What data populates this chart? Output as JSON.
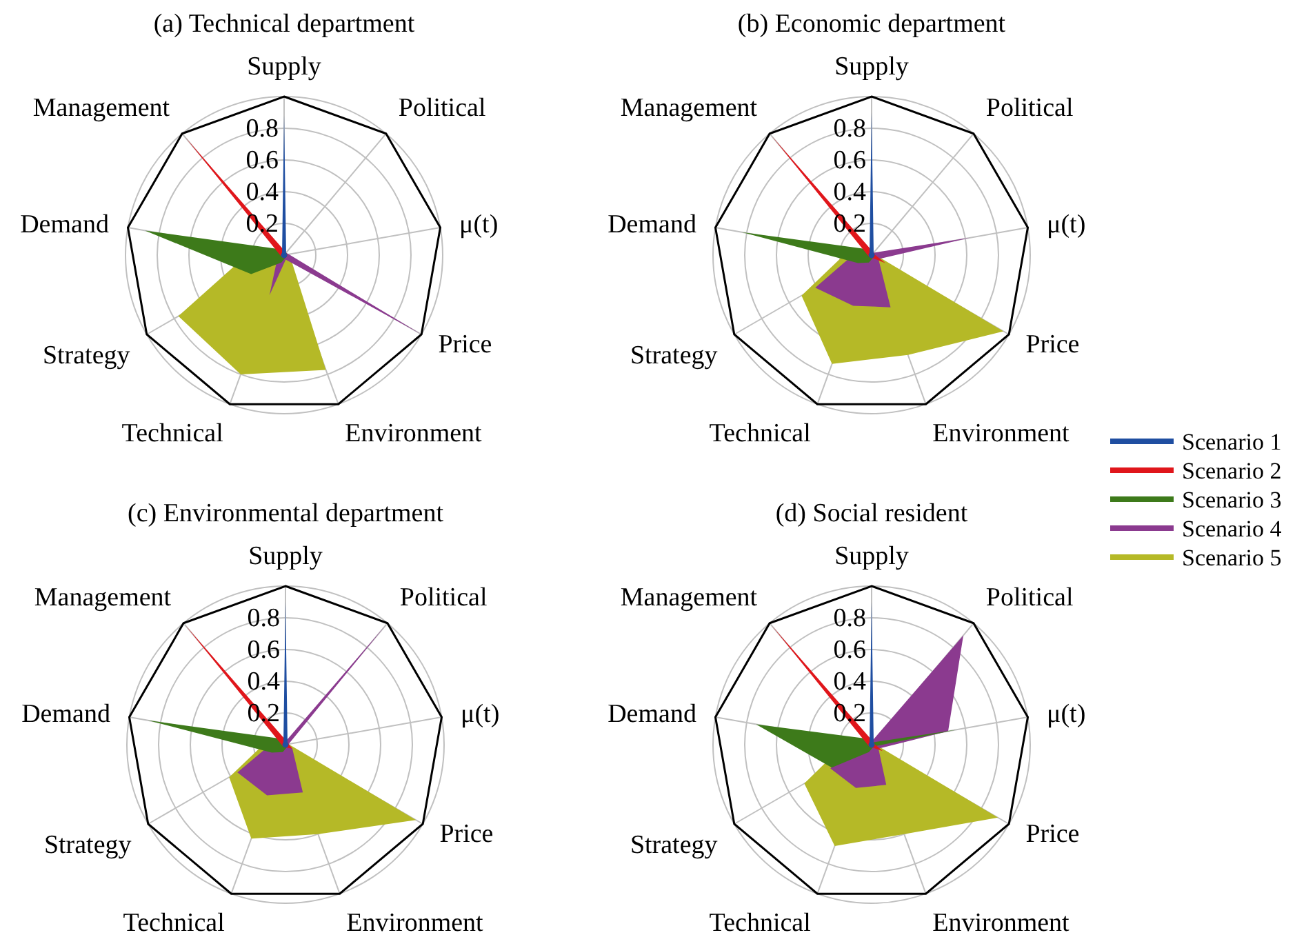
{
  "chart_data": [
    {
      "type": "radar",
      "title": "(a) Technical department",
      "categories": [
        "Supply",
        "Political",
        "μ(t)",
        "Price",
        "Environment",
        "Technical",
        "Strategy",
        "Demand",
        "Management"
      ],
      "ylim": [
        0,
        1
      ],
      "yticks": [
        0.2,
        0.4,
        0.6,
        0.8
      ],
      "grid": true,
      "series": [
        {
          "color": "#1f4ea1",
          "values": [
            0.88,
            0.02,
            0.02,
            0.02,
            0.02,
            0.02,
            0.02,
            0.02,
            0.02
          ]
        },
        {
          "color": "#e0161b",
          "values": [
            0.03,
            0.02,
            0.02,
            0.02,
            0.02,
            0.02,
            0.02,
            0.03,
            0.97
          ]
        },
        {
          "color": "#3d7a1a",
          "values": [
            0.02,
            0.02,
            0.02,
            0.02,
            0.02,
            0.05,
            0.24,
            0.89,
            0.05
          ]
        },
        {
          "color": "#8b3a8f",
          "values": [
            0.02,
            0.02,
            0.03,
            1.0,
            0.03,
            0.27,
            0.05,
            0.05,
            0.02
          ]
        },
        {
          "color": "#b5b927",
          "values": [
            0.02,
            0.02,
            0.02,
            0.05,
            0.77,
            0.8,
            0.77,
            0.2,
            0.05
          ]
        }
      ]
    },
    {
      "type": "radar",
      "title": "(b) Economic department",
      "categories": [
        "Supply",
        "Political",
        "μ(t)",
        "Price",
        "Environment",
        "Technical",
        "Strategy",
        "Demand",
        "Management"
      ],
      "ylim": [
        0,
        1
      ],
      "yticks": [
        0.2,
        0.4,
        0.6,
        0.8
      ],
      "grid": true,
      "legend": "right",
      "series": [
        {
          "name": "Scenario 1",
          "color": "#1f4ea1",
          "values": [
            0.9,
            0.02,
            0.02,
            0.02,
            0.02,
            0.02,
            0.02,
            0.02,
            0.02
          ]
        },
        {
          "name": "Scenario 2",
          "color": "#e0161b",
          "values": [
            0.03,
            0.02,
            0.02,
            0.1,
            0.02,
            0.02,
            0.02,
            0.03,
            0.98
          ]
        },
        {
          "name": "Scenario 3",
          "color": "#3d7a1a",
          "values": [
            0.02,
            0.02,
            0.02,
            0.02,
            0.02,
            0.05,
            0.1,
            0.83,
            0.05
          ]
        },
        {
          "name": "Scenario 4",
          "color": "#8b3a8f",
          "values": [
            0.02,
            0.02,
            0.63,
            0.05,
            0.35,
            0.34,
            0.41,
            0.1,
            0.02
          ]
        },
        {
          "name": "Scenario 5",
          "color": "#b5b927",
          "values": [
            0.02,
            0.02,
            0.02,
            0.96,
            0.67,
            0.73,
            0.51,
            0.15,
            0.03
          ]
        }
      ]
    },
    {
      "type": "radar",
      "title": "(c) Environmental department",
      "categories": [
        "Supply",
        "Political",
        "μ(t)",
        "Price",
        "Environment",
        "Technical",
        "Strategy",
        "Demand",
        "Management"
      ],
      "ylim": [
        0,
        1
      ],
      "yticks": [
        0.2,
        0.4,
        0.6,
        0.8
      ],
      "grid": true,
      "series": [
        {
          "color": "#1f4ea1",
          "values": [
            0.9,
            0.02,
            0.02,
            0.02,
            0.02,
            0.02,
            0.02,
            0.02,
            0.02
          ]
        },
        {
          "color": "#e0161b",
          "values": [
            0.03,
            0.02,
            0.02,
            0.05,
            0.02,
            0.02,
            0.02,
            0.03,
            0.98
          ]
        },
        {
          "color": "#3d7a1a",
          "values": [
            0.02,
            0.02,
            0.02,
            0.02,
            0.02,
            0.05,
            0.1,
            0.88,
            0.05
          ]
        },
        {
          "color": "#8b3a8f",
          "values": [
            0.02,
            0.98,
            0.02,
            0.05,
            0.32,
            0.34,
            0.35,
            0.08,
            0.02
          ]
        },
        {
          "color": "#b5b927",
          "values": [
            0.02,
            0.02,
            0.02,
            0.95,
            0.6,
            0.63,
            0.41,
            0.12,
            0.03
          ]
        }
      ]
    },
    {
      "type": "radar",
      "title": "(d) Social resident",
      "categories": [
        "Supply",
        "Political",
        "μ(t)",
        "Price",
        "Environment",
        "Technical",
        "Strategy",
        "Demand",
        "Management"
      ],
      "ylim": [
        0,
        1
      ],
      "yticks": [
        0.2,
        0.4,
        0.6,
        0.8
      ],
      "grid": true,
      "series": [
        {
          "color": "#1f4ea1",
          "values": [
            0.9,
            0.02,
            0.02,
            0.02,
            0.02,
            0.02,
            0.02,
            0.02,
            0.02
          ]
        },
        {
          "color": "#e0161b",
          "values": [
            0.03,
            0.02,
            0.02,
            0.08,
            0.02,
            0.02,
            0.02,
            0.03,
            0.98
          ]
        },
        {
          "color": "#3d7a1a",
          "values": [
            0.02,
            0.02,
            0.54,
            0.02,
            0.02,
            0.05,
            0.29,
            0.74,
            0.05
          ]
        },
        {
          "color": "#8b3a8f",
          "values": [
            0.02,
            0.9,
            0.49,
            0.05,
            0.27,
            0.29,
            0.3,
            0.08,
            0.02
          ]
        },
        {
          "color": "#b5b927",
          "values": [
            0.02,
            0.14,
            0.02,
            0.92,
            0.6,
            0.68,
            0.49,
            0.15,
            0.03
          ]
        }
      ]
    }
  ]
}
